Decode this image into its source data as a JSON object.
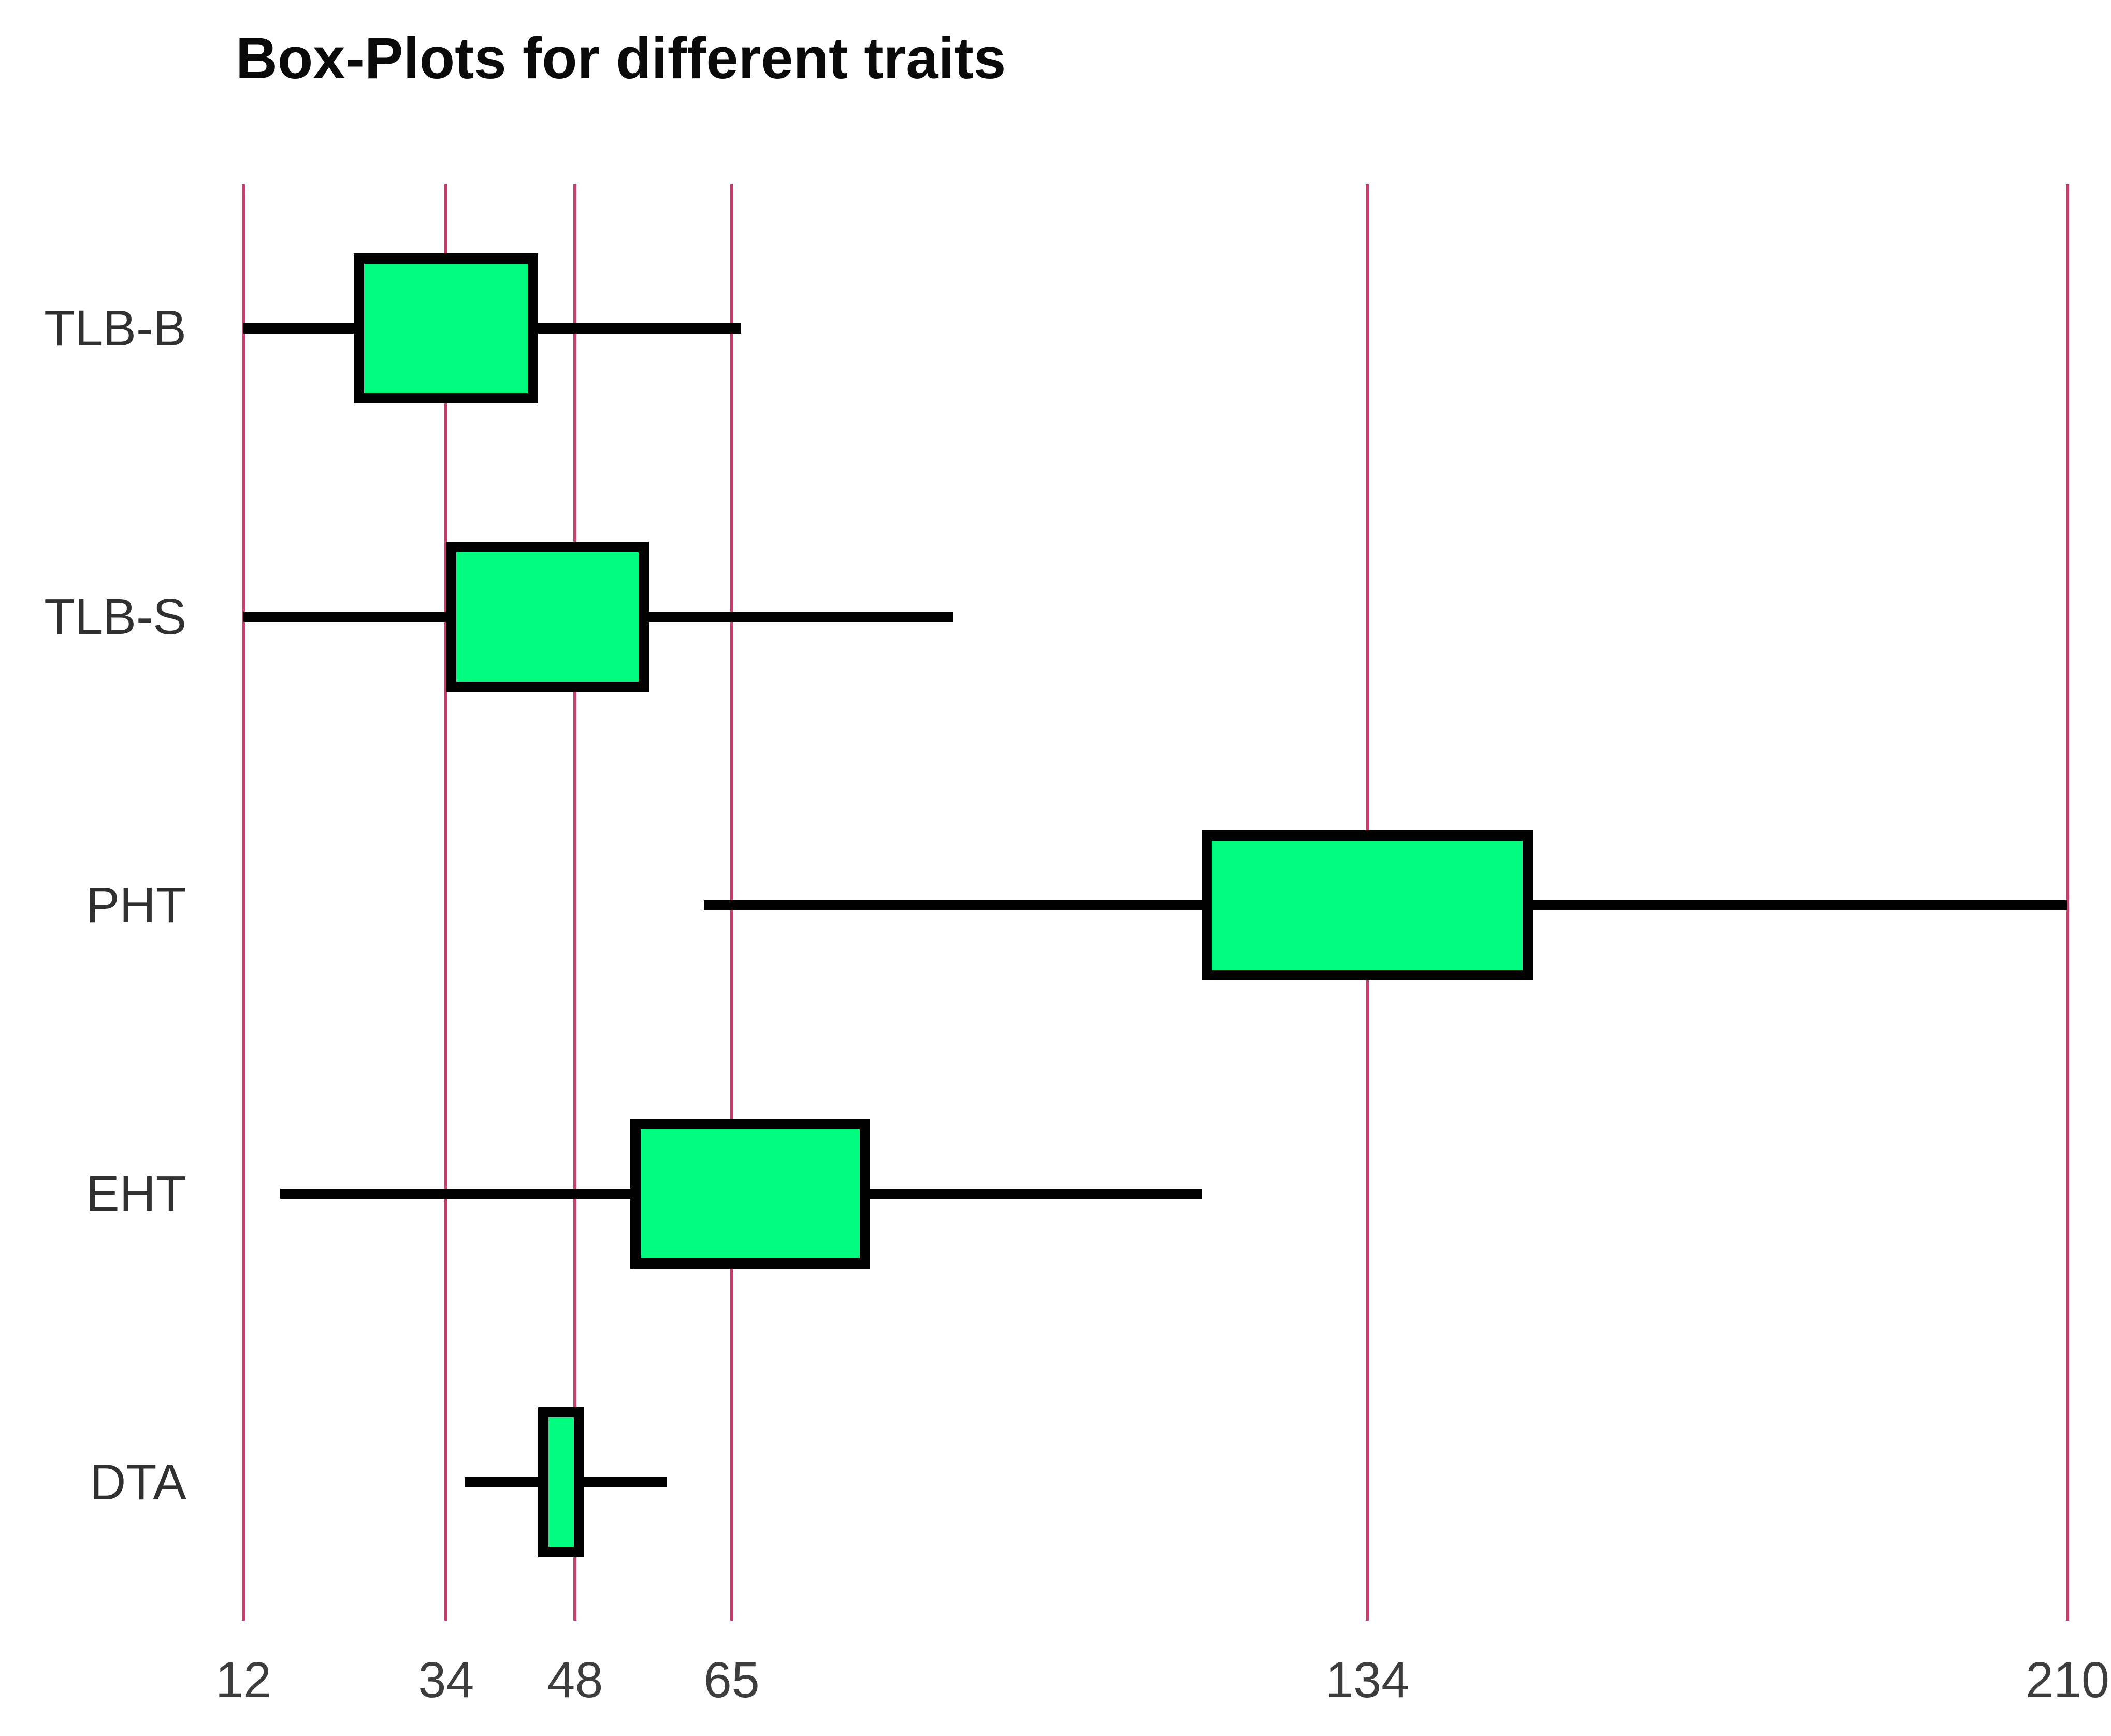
{
  "title": "Box-Plots for different traits",
  "colors": {
    "background": "#FFFFFF",
    "box_fill": "#00FC7E",
    "box_border": "#000000",
    "whisker": "#000000",
    "gridline": "#C2416F",
    "tick_label": "#3D3D3D",
    "category_label": "#303030",
    "title": "#0A0A0A"
  },
  "chart_data": {
    "type": "boxplot",
    "orientation": "horizontal",
    "title": "Box-Plots for different traits",
    "categories": [
      "TLB-B",
      "TLB-S",
      "PHT",
      "EHT",
      "DTA"
    ],
    "x_ticks": [
      12,
      34,
      48,
      65,
      134,
      210
    ],
    "xlim": [
      12,
      210
    ],
    "grid": "vertical gridline at every x tick",
    "legend": "none",
    "median_line_shown": false,
    "series": [
      {
        "name": "TLB-B",
        "whisker_low": 12,
        "q1": 24,
        "q3": 44,
        "whisker_high": 66
      },
      {
        "name": "TLB-S",
        "whisker_low": 12,
        "q1": 34,
        "q3": 56,
        "whisker_high": 89
      },
      {
        "name": "PHT",
        "whisker_low": 62,
        "q1": 116,
        "q3": 152,
        "whisker_high": 210
      },
      {
        "name": "EHT",
        "whisker_low": 16,
        "q1": 54,
        "q3": 80,
        "whisker_high": 116
      },
      {
        "name": "DTA",
        "whisker_low": 36,
        "q1": 44,
        "q3": 49,
        "whisker_high": 58
      }
    ]
  }
}
